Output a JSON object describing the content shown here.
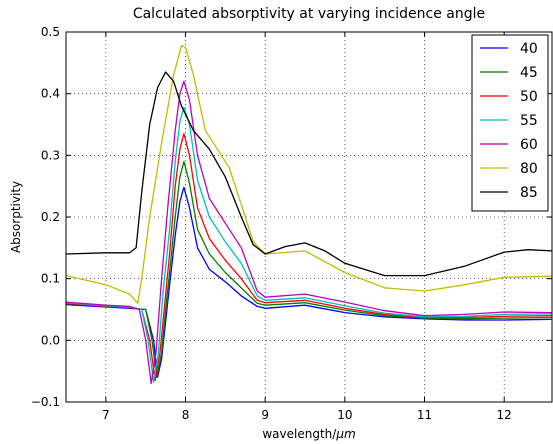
{
  "chart_data": {
    "type": "line",
    "title": "Calculated absorptivity at varying incidence angle",
    "xlabel": "wavelength/",
    "xlabel_unit": "μm",
    "ylabel": "Absorptivity",
    "xlim": [
      6.5,
      12.6
    ],
    "ylim": [
      -0.1,
      0.5
    ],
    "xticks": [
      "7",
      "8",
      "9",
      "10",
      "11",
      "12"
    ],
    "yticks": [
      "−0.1",
      "0.0",
      "0.1",
      "0.2",
      "0.3",
      "0.4",
      "0.5"
    ],
    "grid": true,
    "grid_style": "dotted",
    "legend_position": "upper-right",
    "series": [
      {
        "name": "40",
        "color": "#0000ff",
        "points": [
          [
            6.5,
            0.058
          ],
          [
            7.0,
            0.054
          ],
          [
            7.3,
            0.052
          ],
          [
            7.5,
            0.05
          ],
          [
            7.6,
            0.0
          ],
          [
            7.65,
            -0.06
          ],
          [
            7.7,
            -0.03
          ],
          [
            7.75,
            0.03
          ],
          [
            7.8,
            0.09
          ],
          [
            7.87,
            0.17
          ],
          [
            7.93,
            0.225
          ],
          [
            7.98,
            0.248
          ],
          [
            8.05,
            0.215
          ],
          [
            8.15,
            0.15
          ],
          [
            8.3,
            0.115
          ],
          [
            8.5,
            0.095
          ],
          [
            8.7,
            0.072
          ],
          [
            8.9,
            0.055
          ],
          [
            9.0,
            0.052
          ],
          [
            9.5,
            0.057
          ],
          [
            10.0,
            0.045
          ],
          [
            10.5,
            0.038
          ],
          [
            11.0,
            0.035
          ],
          [
            11.5,
            0.033
          ],
          [
            12.0,
            0.033
          ],
          [
            12.6,
            0.034
          ]
        ]
      },
      {
        "name": "45",
        "color": "#008000",
        "points": [
          [
            6.5,
            0.06
          ],
          [
            7.0,
            0.055
          ],
          [
            7.3,
            0.053
          ],
          [
            7.5,
            0.05
          ],
          [
            7.58,
            0.0
          ],
          [
            7.64,
            -0.06
          ],
          [
            7.7,
            -0.02
          ],
          [
            7.75,
            0.05
          ],
          [
            7.8,
            0.11
          ],
          [
            7.87,
            0.2
          ],
          [
            7.93,
            0.265
          ],
          [
            7.98,
            0.29
          ],
          [
            8.05,
            0.255
          ],
          [
            8.15,
            0.18
          ],
          [
            8.3,
            0.14
          ],
          [
            8.5,
            0.11
          ],
          [
            8.7,
            0.085
          ],
          [
            8.9,
            0.06
          ],
          [
            9.0,
            0.057
          ],
          [
            9.5,
            0.061
          ],
          [
            10.0,
            0.049
          ],
          [
            10.5,
            0.04
          ],
          [
            11.0,
            0.036
          ],
          [
            11.5,
            0.035
          ],
          [
            12.0,
            0.036
          ],
          [
            12.6,
            0.037
          ]
        ]
      },
      {
        "name": "50",
        "color": "#ff0000",
        "points": [
          [
            6.5,
            0.06
          ],
          [
            7.0,
            0.055
          ],
          [
            7.3,
            0.053
          ],
          [
            7.45,
            0.05
          ],
          [
            7.55,
            0.0
          ],
          [
            7.62,
            -0.065
          ],
          [
            7.68,
            -0.02
          ],
          [
            7.74,
            0.06
          ],
          [
            7.8,
            0.14
          ],
          [
            7.87,
            0.25
          ],
          [
            7.93,
            0.31
          ],
          [
            7.98,
            0.335
          ],
          [
            8.05,
            0.3
          ],
          [
            8.15,
            0.215
          ],
          [
            8.3,
            0.165
          ],
          [
            8.5,
            0.13
          ],
          [
            8.7,
            0.1
          ],
          [
            8.9,
            0.065
          ],
          [
            9.0,
            0.061
          ],
          [
            9.5,
            0.065
          ],
          [
            10.0,
            0.052
          ],
          [
            10.5,
            0.042
          ],
          [
            11.0,
            0.037
          ],
          [
            11.5,
            0.037
          ],
          [
            12.0,
            0.039
          ],
          [
            12.6,
            0.04
          ]
        ]
      },
      {
        "name": "55",
        "color": "#00bfbf",
        "points": [
          [
            6.5,
            0.061
          ],
          [
            7.0,
            0.056
          ],
          [
            7.3,
            0.054
          ],
          [
            7.45,
            0.05
          ],
          [
            7.53,
            0.0
          ],
          [
            7.6,
            -0.068
          ],
          [
            7.66,
            -0.02
          ],
          [
            7.72,
            0.08
          ],
          [
            7.8,
            0.18
          ],
          [
            7.87,
            0.29
          ],
          [
            7.93,
            0.355
          ],
          [
            7.98,
            0.378
          ],
          [
            8.05,
            0.35
          ],
          [
            8.15,
            0.26
          ],
          [
            8.3,
            0.2
          ],
          [
            8.5,
            0.16
          ],
          [
            8.7,
            0.125
          ],
          [
            8.9,
            0.072
          ],
          [
            9.0,
            0.065
          ],
          [
            9.5,
            0.069
          ],
          [
            10.0,
            0.056
          ],
          [
            10.5,
            0.044
          ],
          [
            11.0,
            0.038
          ],
          [
            11.5,
            0.039
          ],
          [
            12.0,
            0.042
          ],
          [
            12.6,
            0.043
          ]
        ]
      },
      {
        "name": "60",
        "color": "#bf00bf",
        "points": [
          [
            6.5,
            0.062
          ],
          [
            7.0,
            0.057
          ],
          [
            7.3,
            0.055
          ],
          [
            7.42,
            0.05
          ],
          [
            7.5,
            0.0
          ],
          [
            7.57,
            -0.07
          ],
          [
            7.63,
            -0.02
          ],
          [
            7.7,
            0.1
          ],
          [
            7.78,
            0.22
          ],
          [
            7.87,
            0.34
          ],
          [
            7.93,
            0.4
          ],
          [
            7.98,
            0.42
          ],
          [
            8.05,
            0.39
          ],
          [
            8.15,
            0.3
          ],
          [
            8.3,
            0.23
          ],
          [
            8.5,
            0.19
          ],
          [
            8.7,
            0.15
          ],
          [
            8.9,
            0.08
          ],
          [
            9.0,
            0.07
          ],
          [
            9.5,
            0.075
          ],
          [
            10.0,
            0.062
          ],
          [
            10.5,
            0.048
          ],
          [
            11.0,
            0.04
          ],
          [
            11.5,
            0.042
          ],
          [
            12.0,
            0.046
          ],
          [
            12.6,
            0.045
          ]
        ]
      },
      {
        "name": "80",
        "color": "#bfbf00",
        "points": [
          [
            6.5,
            0.105
          ],
          [
            7.0,
            0.09
          ],
          [
            7.3,
            0.075
          ],
          [
            7.4,
            0.06
          ],
          [
            7.45,
            0.1
          ],
          [
            7.55,
            0.2
          ],
          [
            7.7,
            0.32
          ],
          [
            7.85,
            0.43
          ],
          [
            7.95,
            0.478
          ],
          [
            8.0,
            0.475
          ],
          [
            8.1,
            0.43
          ],
          [
            8.25,
            0.34
          ],
          [
            8.4,
            0.31
          ],
          [
            8.55,
            0.28
          ],
          [
            8.7,
            0.22
          ],
          [
            8.85,
            0.16
          ],
          [
            9.0,
            0.14
          ],
          [
            9.5,
            0.145
          ],
          [
            10.0,
            0.11
          ],
          [
            10.5,
            0.085
          ],
          [
            11.0,
            0.08
          ],
          [
            11.5,
            0.09
          ],
          [
            12.0,
            0.102
          ],
          [
            12.6,
            0.104
          ]
        ]
      },
      {
        "name": "85",
        "color": "#000000",
        "points": [
          [
            6.5,
            0.14
          ],
          [
            7.0,
            0.142
          ],
          [
            7.3,
            0.142
          ],
          [
            7.38,
            0.15
          ],
          [
            7.45,
            0.24
          ],
          [
            7.55,
            0.35
          ],
          [
            7.65,
            0.41
          ],
          [
            7.75,
            0.435
          ],
          [
            7.85,
            0.42
          ],
          [
            7.95,
            0.38
          ],
          [
            8.1,
            0.34
          ],
          [
            8.3,
            0.31
          ],
          [
            8.5,
            0.265
          ],
          [
            8.7,
            0.2
          ],
          [
            8.85,
            0.155
          ],
          [
            9.0,
            0.14
          ],
          [
            9.25,
            0.152
          ],
          [
            9.5,
            0.158
          ],
          [
            9.75,
            0.145
          ],
          [
            10.0,
            0.125
          ],
          [
            10.5,
            0.105
          ],
          [
            11.0,
            0.105
          ],
          [
            11.5,
            0.12
          ],
          [
            12.0,
            0.143
          ],
          [
            12.3,
            0.147
          ],
          [
            12.6,
            0.145
          ]
        ]
      }
    ]
  }
}
